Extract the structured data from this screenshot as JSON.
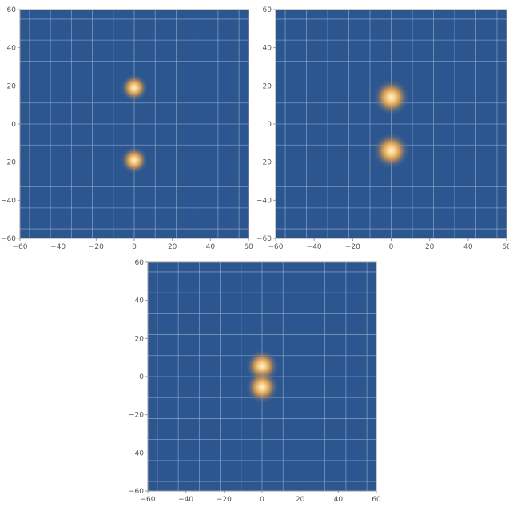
{
  "chart_data": [
    {
      "type": "heatmap",
      "title": "",
      "xlabel": "",
      "ylabel": "",
      "xlim": [
        -60,
        60
      ],
      "ylim": [
        -60,
        60
      ],
      "x_ticks": [
        -60,
        -40,
        -20,
        0,
        20,
        40,
        60
      ],
      "y_ticks": [
        -60,
        -40,
        -20,
        0,
        20,
        40,
        60
      ],
      "x_tick_labels": [
        "−60",
        "−40",
        "−20",
        "0",
        "20",
        "40",
        "60"
      ],
      "y_tick_labels": [
        "−60",
        "−40",
        "−20",
        "0",
        "20",
        "40",
        "60"
      ],
      "grid": true,
      "grid_values": [
        -55,
        -44,
        -33,
        -22,
        -11,
        0,
        11,
        22,
        33,
        44,
        55
      ],
      "background_color": "#2b5690",
      "peak_color": "#fff1c8",
      "glow_color": "#e6a04a",
      "grid_color": "#9fb4d2",
      "peaks": [
        {
          "x": 0,
          "y": 19,
          "radius": 5
        },
        {
          "x": 0,
          "y": -19,
          "radius": 5
        }
      ]
    },
    {
      "type": "heatmap",
      "title": "",
      "xlabel": "",
      "ylabel": "",
      "xlim": [
        -60,
        60
      ],
      "ylim": [
        -60,
        60
      ],
      "x_ticks": [
        -60,
        -40,
        -20,
        0,
        20,
        40,
        60
      ],
      "y_ticks": [
        -60,
        -40,
        -20,
        0,
        20,
        40,
        60
      ],
      "x_tick_labels": [
        "−60",
        "−40",
        "−20",
        "0",
        "20",
        "40",
        "60"
      ],
      "y_tick_labels": [
        "−60",
        "−40",
        "−20",
        "0",
        "20",
        "40",
        "60"
      ],
      "grid": true,
      "grid_values": [
        -55,
        -44,
        -33,
        -22,
        -11,
        0,
        11,
        22,
        33,
        44,
        55
      ],
      "background_color": "#2b5690",
      "peak_color": "#fff1c8",
      "glow_color": "#e6a04a",
      "grid_color": "#9fb4d2",
      "peaks": [
        {
          "x": 0,
          "y": 14,
          "radius": 6.5
        },
        {
          "x": 0,
          "y": -14,
          "radius": 6.5
        }
      ]
    },
    {
      "type": "heatmap",
      "title": "",
      "xlabel": "",
      "ylabel": "",
      "xlim": [
        -60,
        60
      ],
      "ylim": [
        -60,
        60
      ],
      "x_ticks": [
        -60,
        -40,
        -20,
        0,
        20,
        40,
        60
      ],
      "y_ticks": [
        -60,
        -40,
        -20,
        0,
        20,
        40,
        60
      ],
      "x_tick_labels": [
        "−60",
        "−40",
        "−20",
        "0",
        "20",
        "40",
        "60"
      ],
      "y_tick_labels": [
        "−60",
        "−40",
        "−20",
        "0",
        "20",
        "40",
        "60"
      ],
      "grid": true,
      "grid_values": [
        -55,
        -44,
        -33,
        -22,
        -11,
        0,
        11,
        22,
        33,
        44,
        55
      ],
      "background_color": "#2b5690",
      "peak_color": "#fff1c8",
      "glow_color": "#e6a04a",
      "grid_color": "#9fb4d2",
      "peaks": [
        {
          "x": 0,
          "y": 5.5,
          "radius": 6
        },
        {
          "x": 0,
          "y": -5.5,
          "radius": 6
        }
      ]
    }
  ]
}
